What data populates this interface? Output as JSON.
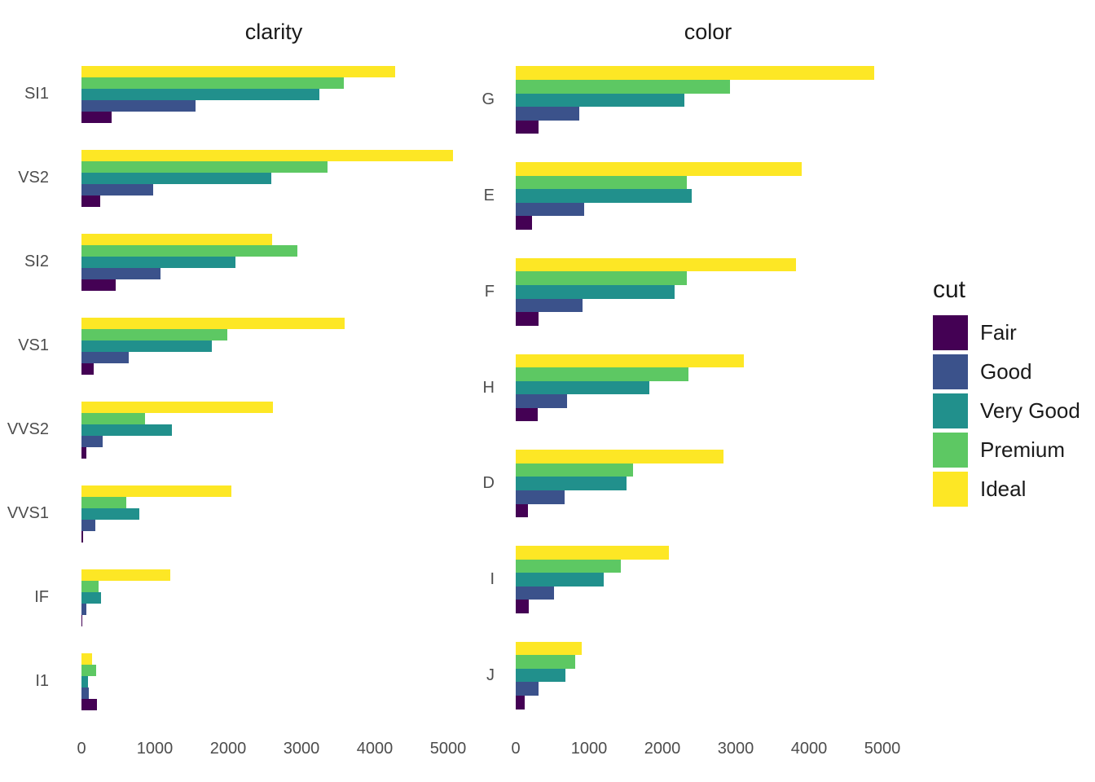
{
  "legend": {
    "title": "cut",
    "items": [
      {
        "label": "Fair",
        "color": "#440154"
      },
      {
        "label": "Good",
        "color": "#3B528B"
      },
      {
        "label": "Very Good",
        "color": "#21908C"
      },
      {
        "label": "Premium",
        "color": "#5DC863"
      },
      {
        "label": "Ideal",
        "color": "#FDE725"
      }
    ]
  },
  "chart_data": [
    {
      "type": "bar",
      "orientation": "horizontal",
      "title": "clarity",
      "categories": [
        "SI1",
        "VS2",
        "SI2",
        "VS1",
        "VVS2",
        "VVS1",
        "IF",
        "I1"
      ],
      "series": [
        {
          "name": "Fair",
          "values": [
            408,
            261,
            466,
            170,
            69,
            17,
            9,
            210
          ]
        },
        {
          "name": "Good",
          "values": [
            1560,
            978,
            1081,
            648,
            286,
            186,
            71,
            96
          ]
        },
        {
          "name": "Very Good",
          "values": [
            3240,
            2591,
            2100,
            1775,
            1235,
            789,
            268,
            84
          ]
        },
        {
          "name": "Premium",
          "values": [
            3575,
            3357,
            2949,
            1989,
            870,
            616,
            230,
            205
          ]
        },
        {
          "name": "Ideal",
          "values": [
            4282,
            5071,
            2598,
            3589,
            2606,
            2047,
            1212,
            146
          ]
        }
      ],
      "xticks": [
        0,
        1000,
        2000,
        3000,
        4000,
        5000
      ],
      "xlim": [
        0,
        5244
      ],
      "grid": false,
      "legend_position": "right"
    },
    {
      "type": "bar",
      "orientation": "horizontal",
      "title": "color",
      "categories": [
        "G",
        "E",
        "F",
        "H",
        "D",
        "I",
        "J"
      ],
      "series": [
        {
          "name": "Fair",
          "values": [
            314,
            224,
            312,
            303,
            163,
            175,
            119
          ]
        },
        {
          "name": "Good",
          "values": [
            871,
            933,
            909,
            702,
            662,
            522,
            307
          ]
        },
        {
          "name": "Very Good",
          "values": [
            2299,
            2400,
            2164,
            1824,
            1513,
            1204,
            678
          ]
        },
        {
          "name": "Premium",
          "values": [
            2924,
            2337,
            2331,
            2360,
            1603,
            1428,
            808
          ]
        },
        {
          "name": "Ideal",
          "values": [
            4884,
            3903,
            3826,
            3115,
            2834,
            2093,
            896
          ]
        }
      ],
      "xticks": [
        0,
        1000,
        2000,
        3000,
        4000,
        5000
      ],
      "xlim": [
        0,
        5244
      ],
      "grid": false,
      "legend_position": "right"
    }
  ]
}
